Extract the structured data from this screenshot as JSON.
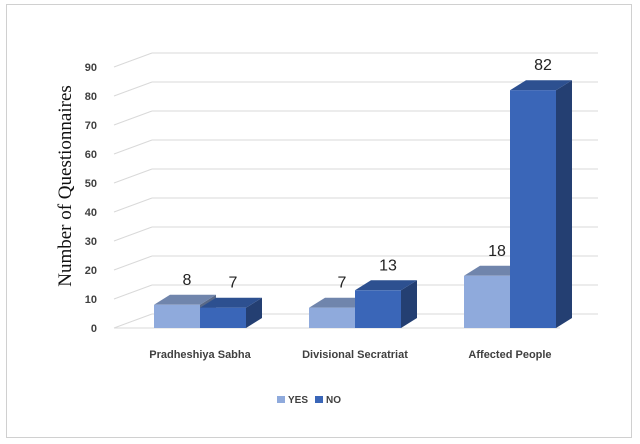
{
  "chart_data": {
    "type": "bar",
    "title": "",
    "xlabel": "",
    "ylabel": "Number of Questionnaires",
    "categories": [
      "Pradheshiya Sabha",
      "Divisional Secratriat",
      "Affected People"
    ],
    "series": [
      {
        "name": "YES",
        "values": [
          8,
          7,
          18
        ],
        "color": "#8faadc"
      },
      {
        "name": "NO",
        "values": [
          7,
          13,
          82
        ],
        "color": "#3a66b8"
      }
    ],
    "ylim": [
      0,
      90
    ],
    "yticks": [
      "0",
      "10",
      "20",
      "30",
      "40",
      "50",
      "60",
      "70",
      "80",
      "90"
    ],
    "grid": true,
    "style": "3d-clustered-column",
    "legend": "bottom"
  }
}
